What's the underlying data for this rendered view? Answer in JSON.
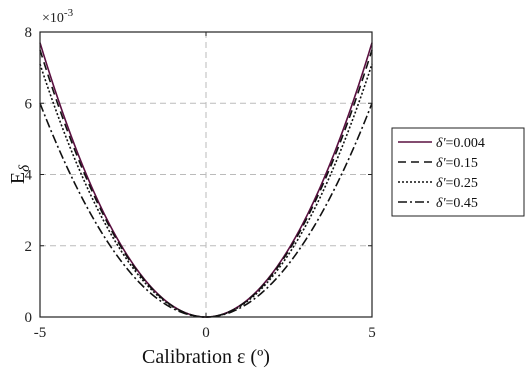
{
  "chart_data": {
    "type": "line",
    "x_label": "Calibration ε (º)",
    "y_label_main": "E",
    "y_label_sub": "δ",
    "y_scale_prefix": "×10",
    "y_scale_exponent": "-3",
    "xlim": [
      -5,
      5
    ],
    "ylim": [
      0,
      8
    ],
    "x_ticks": [
      -5,
      0,
      5
    ],
    "y_ticks": [
      0,
      2,
      4,
      6,
      8
    ],
    "grid": true,
    "legend_position": "outside-right",
    "series": [
      {
        "name": "δ'=0.004",
        "legend_symbol": "δ'",
        "legend_value": "=0.004",
        "coefficient_e3": 0.308,
        "y_at_5": 7.7,
        "dash": "",
        "color": "#5a1040"
      },
      {
        "name": "δ'=0.15",
        "legend_symbol": "δ'",
        "legend_value": "=0.15",
        "coefficient_e3": 0.3,
        "y_at_5": 7.5,
        "dash": "8,5",
        "color": "#111111"
      },
      {
        "name": "δ'=0.25",
        "legend_symbol": "δ'",
        "legend_value": "=0.25",
        "coefficient_e3": 0.284,
        "y_at_5": 7.1,
        "dash": "2,2",
        "color": "#111111"
      },
      {
        "name": "δ'=0.45",
        "legend_symbol": "δ'",
        "legend_value": "=0.45",
        "coefficient_e3": 0.24,
        "y_at_5": 6.0,
        "dash": "9,3,2,3",
        "color": "#111111"
      }
    ]
  }
}
